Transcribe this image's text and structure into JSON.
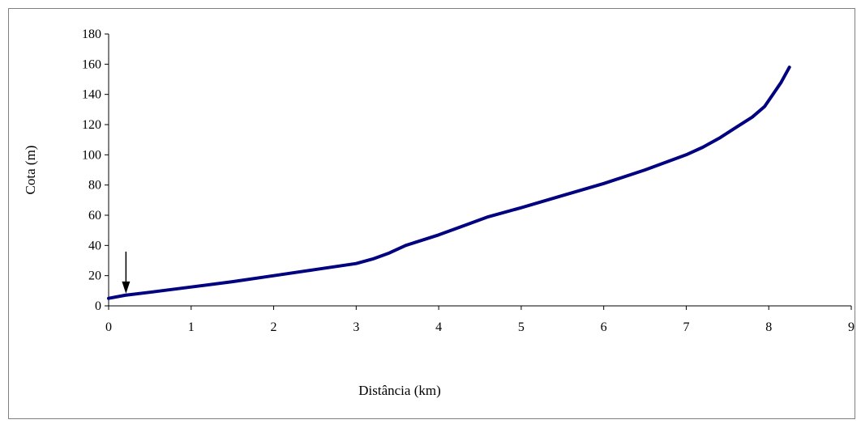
{
  "chart_data": {
    "type": "line",
    "title": "",
    "xlabel": "Distância (km)",
    "ylabel": "Cota (m)",
    "xlim": [
      0,
      9
    ],
    "ylim": [
      0,
      180
    ],
    "xticks": [
      "0",
      "1",
      "2",
      "3",
      "4",
      "5",
      "6",
      "7",
      "8",
      "9"
    ],
    "yticks": [
      "0",
      "20",
      "40",
      "60",
      "80",
      "100",
      "120",
      "140",
      "160",
      "180"
    ],
    "grid": false,
    "legend": "none",
    "line_color": "#000080",
    "series": [
      {
        "x": [
          0,
          0.2,
          0.5,
          1,
          1.5,
          2,
          2.5,
          3,
          3.2,
          3.4,
          3.6,
          4,
          4.3,
          4.6,
          5,
          5.5,
          6,
          6.5,
          7,
          7.2,
          7.4,
          7.6,
          7.8,
          7.95,
          8.05,
          8.15,
          8.25
        ],
        "y": [
          5,
          7,
          9,
          12.5,
          16,
          20,
          24,
          28,
          31,
          35,
          40,
          47,
          53,
          59,
          65,
          73,
          81,
          90,
          100,
          105,
          111,
          118,
          125,
          132,
          140,
          148,
          158
        ]
      }
    ],
    "annotations": [
      {
        "type": "arrow",
        "x": 0.21,
        "y": 7,
        "direction": "down"
      }
    ]
  }
}
